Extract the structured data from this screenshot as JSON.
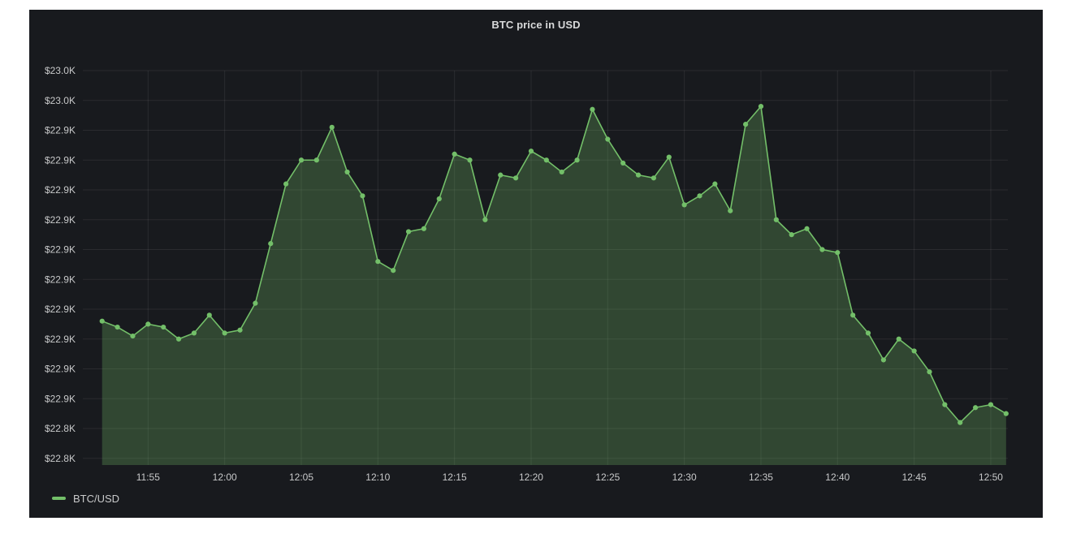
{
  "panel": {
    "background": "#181a1e",
    "title_color": "#d8d9da",
    "tick_color": "#c8c9ca",
    "grid_color": "rgba(255,255,255,0.08)"
  },
  "legend": {
    "swatch_color": "#73bf69"
  },
  "chart_data": {
    "type": "area",
    "title": "BTC price in USD",
    "xlabel": "",
    "ylabel": "",
    "grid": true,
    "legend_position": "bottom-left",
    "x_ticks": [
      "11:55",
      "12:00",
      "12:05",
      "12:10",
      "12:15",
      "12:20",
      "12:25",
      "12:30",
      "12:35",
      "12:40",
      "12:45",
      "12:50"
    ],
    "y_tick_values": [
      22960,
      22950,
      22940,
      22930,
      22920,
      22910,
      22900,
      22890,
      22880,
      22870,
      22860,
      22850,
      22840,
      22830
    ],
    "y_tick_labels": [
      "$23.0K",
      "$23.0K",
      "$22.9K",
      "$22.9K",
      "$22.9K",
      "$22.9K",
      "$22.9K",
      "$22.9K",
      "$22.9K",
      "$22.9K",
      "$22.9K",
      "$22.9K",
      "$22.8K",
      "$22.8K"
    ],
    "ylim": [
      22828,
      22962
    ],
    "series": [
      {
        "name": "BTC/USD",
        "color": "#73bf69",
        "fill_opacity": 0.28,
        "show_points": true,
        "x": [
          "11:52",
          "11:53",
          "11:54",
          "11:55",
          "11:56",
          "11:57",
          "11:58",
          "11:59",
          "12:00",
          "12:01",
          "12:02",
          "12:03",
          "12:04",
          "12:05",
          "12:06",
          "12:07",
          "12:08",
          "12:09",
          "12:10",
          "12:11",
          "12:12",
          "12:13",
          "12:14",
          "12:15",
          "12:16",
          "12:17",
          "12:18",
          "12:19",
          "12:20",
          "12:21",
          "12:22",
          "12:23",
          "12:24",
          "12:25",
          "12:26",
          "12:27",
          "12:28",
          "12:29",
          "12:30",
          "12:31",
          "12:32",
          "12:33",
          "12:34",
          "12:35",
          "12:36",
          "12:37",
          "12:38",
          "12:39",
          "12:40",
          "12:41",
          "12:42",
          "12:43",
          "12:44",
          "12:45",
          "12:46",
          "12:47",
          "12:48",
          "12:49",
          "12:50",
          "12:51"
        ],
        "values": [
          22876,
          22874,
          22871,
          22875,
          22874,
          22870,
          22872,
          22878,
          22872,
          22873,
          22882,
          22902,
          22922,
          22930,
          22930,
          22941,
          22926,
          22918,
          22896,
          22893,
          22906,
          22907,
          22917,
          22932,
          22930,
          22910,
          22925,
          22924,
          22933,
          22930,
          22926,
          22930,
          22947,
          22937,
          22929,
          22925,
          22924,
          22931,
          22915,
          22918,
          22922,
          22913,
          22942,
          22948,
          22910,
          22905,
          22907,
          22900,
          22899,
          22878,
          22872,
          22863,
          22870,
          22866,
          22859,
          22848,
          22842,
          22847,
          22848,
          22845
        ]
      }
    ]
  }
}
